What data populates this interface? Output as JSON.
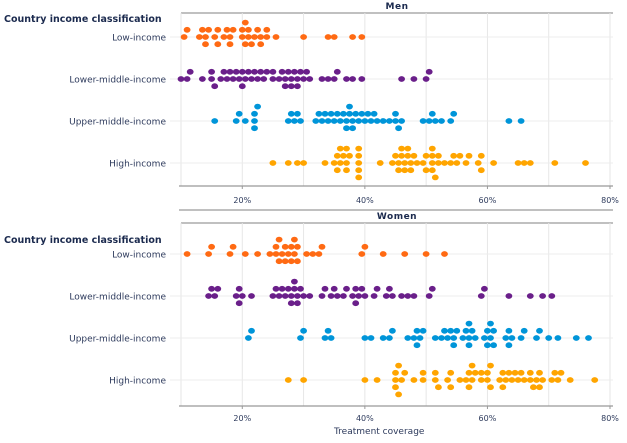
{
  "chart_data": [
    {
      "type": "scatter",
      "subtype": "beeswarm",
      "title": "Men",
      "ylabel": "Country income classification",
      "xlabel": "",
      "xlim": [
        10,
        80
      ],
      "xticks": [
        20,
        40,
        60,
        80
      ],
      "tick_labels": [
        "20%",
        "40%",
        "60%",
        "80%"
      ],
      "grid": true,
      "categories": [
        "Low-income",
        "Lower-middle-income",
        "Upper-middle-income",
        "High-income"
      ],
      "colors": {
        "Low-income": "#ff6a13",
        "Lower-middle-income": "#6a1f8a",
        "Upper-middle-income": "#0095d9",
        "High-income": "#ffa500"
      },
      "series": [
        {
          "name": "Low-income",
          "values": [
            10.5,
            11,
            13,
            13.5,
            14,
            14,
            14.5,
            15.5,
            16,
            16,
            17,
            17.5,
            18,
            18,
            18.5,
            20,
            20,
            20.5,
            20.5,
            21,
            21,
            21.5,
            22,
            22.5,
            23,
            23,
            24,
            24,
            25.5,
            30,
            34,
            35,
            38,
            39.5
          ]
        },
        {
          "name": "Lower-middle-income",
          "values": [
            10,
            11,
            11.5,
            13.5,
            15,
            15,
            15.5,
            16.5,
            17,
            17.5,
            18,
            18.5,
            19,
            19.5,
            20,
            20,
            20.5,
            21,
            21.5,
            22,
            22.5,
            23,
            23.5,
            24,
            25,
            25,
            26,
            26.5,
            27,
            27,
            27.5,
            28,
            28,
            28.5,
            29,
            29,
            29.5,
            30,
            30.5,
            31,
            33,
            34,
            35,
            35.5,
            37,
            38,
            39.5,
            46,
            48,
            50,
            50.5
          ]
        },
        {
          "name": "Upper-middle-income",
          "values": [
            15.5,
            19,
            19.5,
            20.5,
            22,
            22,
            22,
            22.5,
            27.5,
            28,
            28.5,
            29,
            29.5,
            32,
            32.5,
            33,
            33.5,
            34,
            34.5,
            35,
            35.5,
            36,
            36.5,
            37,
            37,
            37.5,
            37.5,
            38,
            38,
            38.5,
            39,
            39.5,
            40,
            40.5,
            41,
            41.5,
            42,
            43,
            44,
            45,
            45,
            45.5,
            46,
            49.5,
            50.5,
            51,
            51.5,
            52.5,
            54,
            54.5,
            63.5,
            65.5
          ]
        },
        {
          "name": "High-income",
          "values": [
            25,
            27.5,
            29,
            30,
            33.5,
            35,
            35.5,
            35.5,
            36,
            36,
            36.5,
            37,
            37,
            37,
            37.5,
            39,
            39,
            39,
            39,
            39,
            42.5,
            44.5,
            45,
            45.5,
            45.5,
            46,
            46,
            46.5,
            46.5,
            47,
            47,
            47.5,
            47.5,
            48,
            48.5,
            49.5,
            50,
            50,
            51,
            51,
            51,
            51,
            51.5,
            52,
            52,
            53,
            54,
            54.5,
            55,
            55.5,
            56.5,
            57,
            58.5,
            59,
            59,
            61,
            65,
            66,
            67,
            71,
            76
          ]
        }
      ]
    },
    {
      "type": "scatter",
      "subtype": "beeswarm",
      "title": "Women",
      "ylabel": "Country income classification",
      "xlabel": "Treatment coverage",
      "xlim": [
        10,
        80
      ],
      "xticks": [
        20,
        40,
        60,
        80
      ],
      "tick_labels": [
        "20%",
        "40%",
        "60%",
        "80%"
      ],
      "grid": true,
      "categories": [
        "Low-income",
        "Lower-middle-income",
        "Upper-middle-income",
        "High-income"
      ],
      "colors": {
        "Low-income": "#ff6a13",
        "Lower-middle-income": "#6a1f8a",
        "Upper-middle-income": "#0095d9",
        "High-income": "#ffa500"
      },
      "series": [
        {
          "name": "Low-income",
          "values": [
            11,
            14.5,
            15,
            18,
            18.5,
            20.5,
            22.5,
            24.5,
            25.5,
            25.5,
            26,
            26,
            26.5,
            27,
            27,
            27.5,
            28,
            28,
            28.5,
            28.5,
            29,
            29,
            30.5,
            31.5,
            32.5,
            33,
            39.5,
            40,
            43,
            46.5,
            50,
            53
          ]
        },
        {
          "name": "Lower-middle-income",
          "values": [
            14.5,
            15,
            15.5,
            16,
            19,
            19.5,
            19.5,
            20,
            21.5,
            25,
            25.5,
            26,
            26.5,
            27,
            27.5,
            28,
            28,
            28.5,
            28.5,
            29,
            29,
            29.5,
            30,
            31,
            33,
            33.5,
            34.5,
            35,
            35.5,
            36.5,
            37,
            38,
            38.5,
            38.5,
            39,
            39.5,
            40,
            41.5,
            42,
            43.5,
            44,
            44.5,
            46,
            47,
            48,
            50.5,
            51,
            59,
            59.5,
            63.5,
            67,
            69,
            70.5
          ]
        },
        {
          "name": "Upper-middle-income",
          "values": [
            21,
            21.5,
            29.5,
            30,
            33.5,
            34,
            34.5,
            40,
            41,
            43,
            44,
            44.5,
            47,
            48,
            48.5,
            48.5,
            49,
            49.5,
            51.5,
            52.5,
            53,
            53.5,
            54,
            54.5,
            54.5,
            55,
            56,
            56.5,
            57,
            57,
            57,
            57.5,
            58,
            59.5,
            60,
            60,
            60.5,
            60.5,
            61,
            61,
            63,
            63.5,
            63.5,
            64,
            65.5,
            66,
            68,
            68.5,
            70,
            71.5,
            74.5,
            76.5
          ]
        },
        {
          "name": "High-income",
          "values": [
            27.5,
            30,
            40,
            42,
            45,
            45,
            45,
            45.5,
            45.5,
            46,
            46.5,
            48,
            49.5,
            49.5,
            51.5,
            51.5,
            52,
            53.5,
            54,
            54,
            55.5,
            56.5,
            57,
            57,
            57.5,
            57.5,
            58,
            59,
            59,
            60,
            60,
            60.5,
            60.5,
            62,
            62.5,
            62.5,
            63,
            63.5,
            64,
            64.5,
            65,
            65.5,
            66,
            67,
            67,
            67.5,
            68,
            68.5,
            68.5,
            69,
            70.5,
            71,
            71.5,
            72,
            73.5,
            77.5
          ]
        }
      ]
    }
  ]
}
